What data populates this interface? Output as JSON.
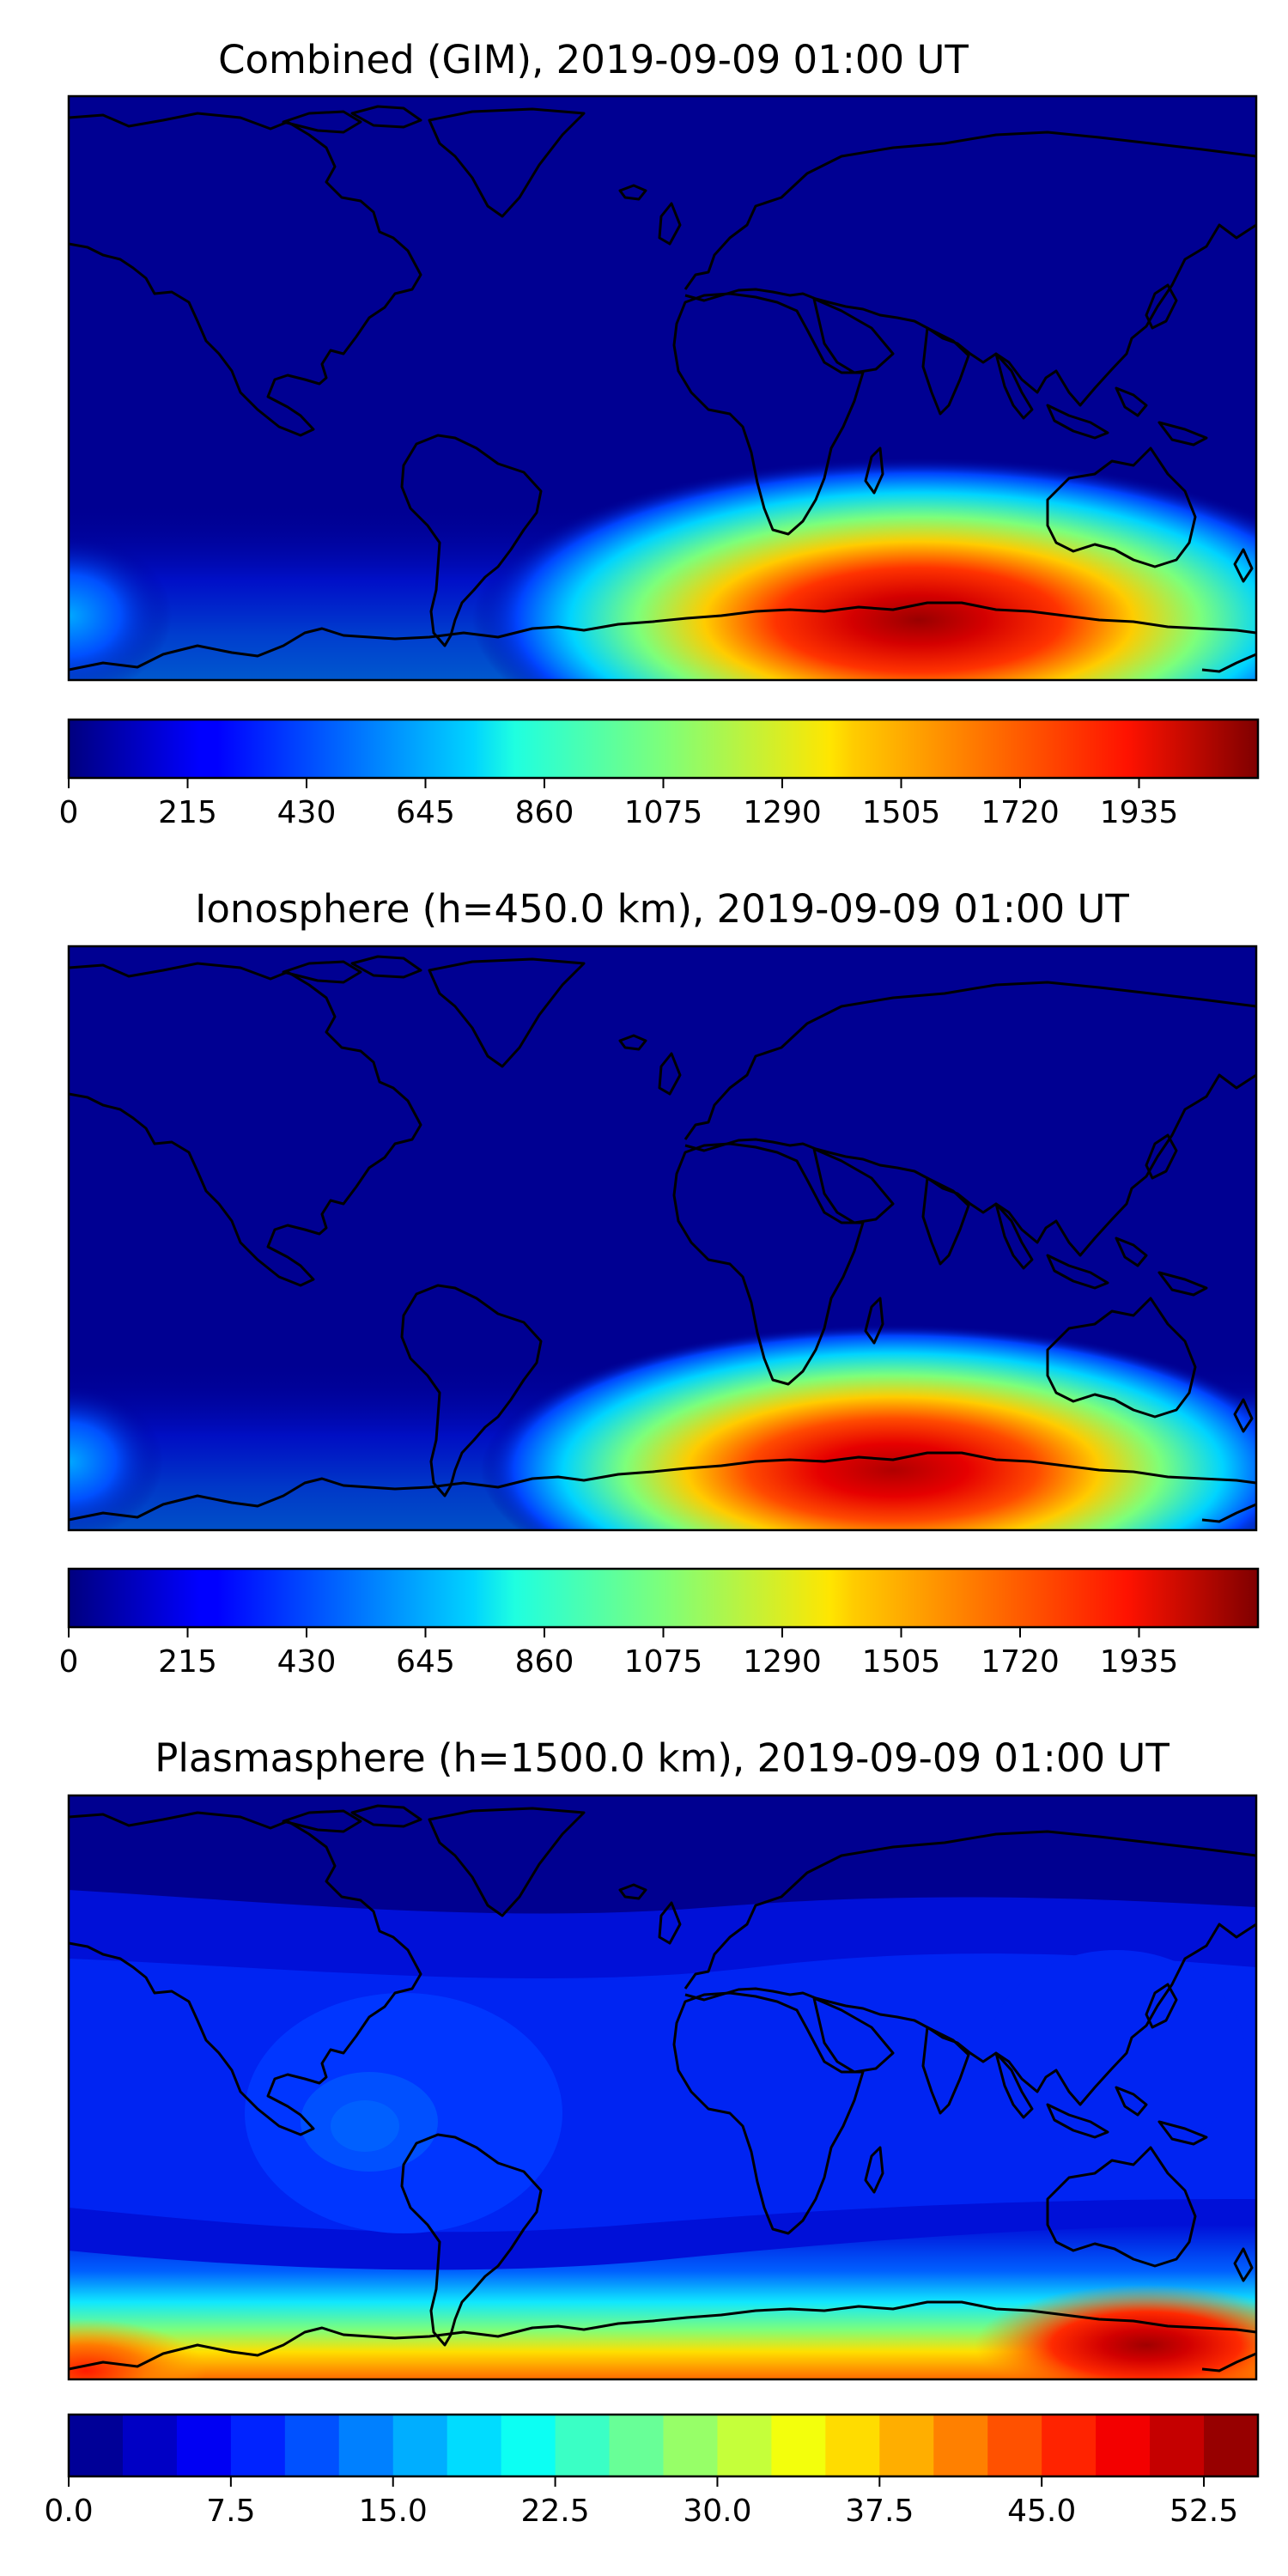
{
  "figure": {
    "panels": [
      {
        "title": "Combined (GIM), 2019-09-09 01:00 UT",
        "field": "ionosphere",
        "colorbar": {
          "type": "continuous",
          "vmin": 0,
          "vmax": 2150,
          "ticks": [
            0,
            215,
            430,
            645,
            860,
            1075,
            1290,
            1505,
            1720,
            1935
          ],
          "tick_labels": [
            "0",
            "215",
            "430",
            "645",
            "860",
            "1075",
            "1290",
            "1505",
            "1720",
            "1935"
          ]
        }
      },
      {
        "title": "Ionosphere  (h=450.0 km), 2019-09-09 01:00 UT",
        "field": "ionosphere",
        "colorbar": {
          "type": "continuous",
          "vmin": 0,
          "vmax": 2150,
          "ticks": [
            0,
            215,
            430,
            645,
            860,
            1075,
            1290,
            1505,
            1720,
            1935
          ],
          "tick_labels": [
            "0",
            "215",
            "430",
            "645",
            "860",
            "1075",
            "1290",
            "1505",
            "1720",
            "1935"
          ]
        }
      },
      {
        "title": "Plasmasphere (h=1500.0 km), 2019-09-09 01:00 UT",
        "field": "plasmasphere",
        "colorbar": {
          "type": "discrete",
          "vmin": 0,
          "vmax": 55,
          "levels": 22,
          "ticks": [
            0,
            7.5,
            15,
            22.5,
            30,
            37.5,
            45,
            52.5
          ],
          "tick_labels": [
            "0.0",
            "7.5",
            "15.0",
            "22.5",
            "30.0",
            "37.5",
            "45.0",
            "52.5"
          ]
        }
      }
    ]
  },
  "chart_data": [
    {
      "type": "heatmap",
      "title": "Combined (GIM), 2019-09-09 01:00 UT",
      "x_range_deg_lon": [
        -180,
        180
      ],
      "y_range_deg_lat": [
        -90,
        90
      ],
      "colormap": "jet",
      "value_range": [
        0,
        2150
      ],
      "features": [
        {
          "name": "southern maximum",
          "lon": 75,
          "lat": -62,
          "value": 2050
        },
        {
          "name": "secondary enhancement",
          "lon": -178,
          "lat": -55,
          "value": 500
        }
      ]
    },
    {
      "type": "heatmap",
      "title": "Ionosphere  (h=450.0 km), 2019-09-09 01:00 UT",
      "x_range_deg_lon": [
        -180,
        180
      ],
      "y_range_deg_lat": [
        -90,
        90
      ],
      "colormap": "jet",
      "value_range": [
        0,
        2150
      ],
      "features": [
        {
          "name": "southern maximum",
          "lon": 72,
          "lat": -62,
          "value": 2000
        },
        {
          "name": "secondary enhancement",
          "lon": -178,
          "lat": -55,
          "value": 450
        }
      ]
    },
    {
      "type": "heatmap",
      "title": "Plasmasphere (h=1500.0 km), 2019-09-09 01:00 UT",
      "x_range_deg_lon": [
        -180,
        180
      ],
      "y_range_deg_lat": [
        -90,
        90
      ],
      "colormap": "jet",
      "value_range": [
        0,
        55
      ],
      "features": [
        {
          "name": "southern maximum",
          "lon": 145,
          "lat": -80,
          "value": 54
        },
        {
          "name": "south polar band",
          "lon": 0,
          "lat": -80,
          "value": 42
        },
        {
          "name": "tropical enhancement",
          "lon": -95,
          "lat": 5,
          "value": 15
        }
      ]
    }
  ]
}
